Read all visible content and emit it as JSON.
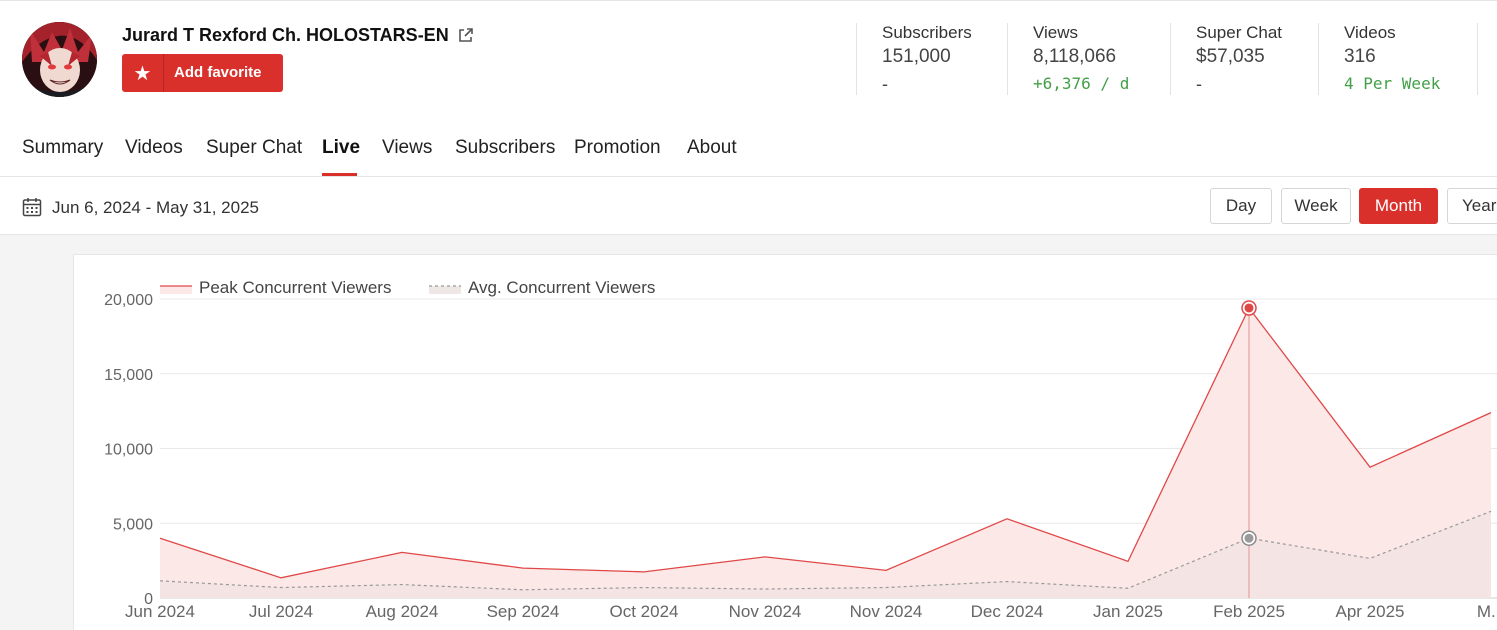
{
  "channel": {
    "name": "Jurard T Rexford Ch. HOLOSTARS-EN",
    "favorite_label": "Add favorite"
  },
  "stats": [
    {
      "label": "Subscribers",
      "value": "151,000",
      "sub": "-"
    },
    {
      "label": "Views",
      "value": "8,118,066",
      "sub": "+6,376 / d"
    },
    {
      "label": "Super Chat",
      "value": "$57,035",
      "sub": "-"
    },
    {
      "label": "Videos",
      "value": "316",
      "sub": "4 Per Week"
    }
  ],
  "tabs": [
    "Summary",
    "Videos",
    "Super Chat",
    "Live",
    "Views",
    "Subscribers",
    "Promotion",
    "About"
  ],
  "active_tab": "Live",
  "date_range": "Jun 6, 2024 - May 31, 2025",
  "periods": [
    "Day",
    "Week",
    "Month",
    "Year"
  ],
  "active_period": "Month",
  "colors": {
    "accent": "#d9302c",
    "peak_line": "#e04848",
    "peak_fill": "#fde8e8",
    "avg_line": "#999999",
    "positive": "#43a047"
  },
  "chart_data": {
    "type": "area",
    "legend": [
      "Peak Concurrent Viewers",
      "Avg. Concurrent Viewers"
    ],
    "legend_position": "top-left",
    "x": [
      "Jun 2024",
      "Jul 2024",
      "Aug 2024",
      "Sep 2024",
      "Oct 2024",
      "Nov 2024",
      "Nov 2024",
      "Dec 2024",
      "Jan 2025",
      "Feb 2025",
      "Apr 2025",
      "M..."
    ],
    "series": [
      {
        "name": "Peak Concurrent Viewers",
        "values": [
          4000,
          1350,
          3050,
          2000,
          1750,
          2750,
          1850,
          5300,
          2450,
          19400,
          8750,
          12400
        ]
      },
      {
        "name": "Avg. Concurrent Viewers",
        "values": [
          1150,
          700,
          900,
          550,
          700,
          600,
          700,
          1100,
          650,
          4000,
          2650,
          5800
        ]
      }
    ],
    "yticks": [
      "0",
      "5,000",
      "10,000",
      "15,000",
      "20,000"
    ],
    "ylim": [
      0,
      20000
    ],
    "grid": true,
    "highlighted_index": 9
  }
}
